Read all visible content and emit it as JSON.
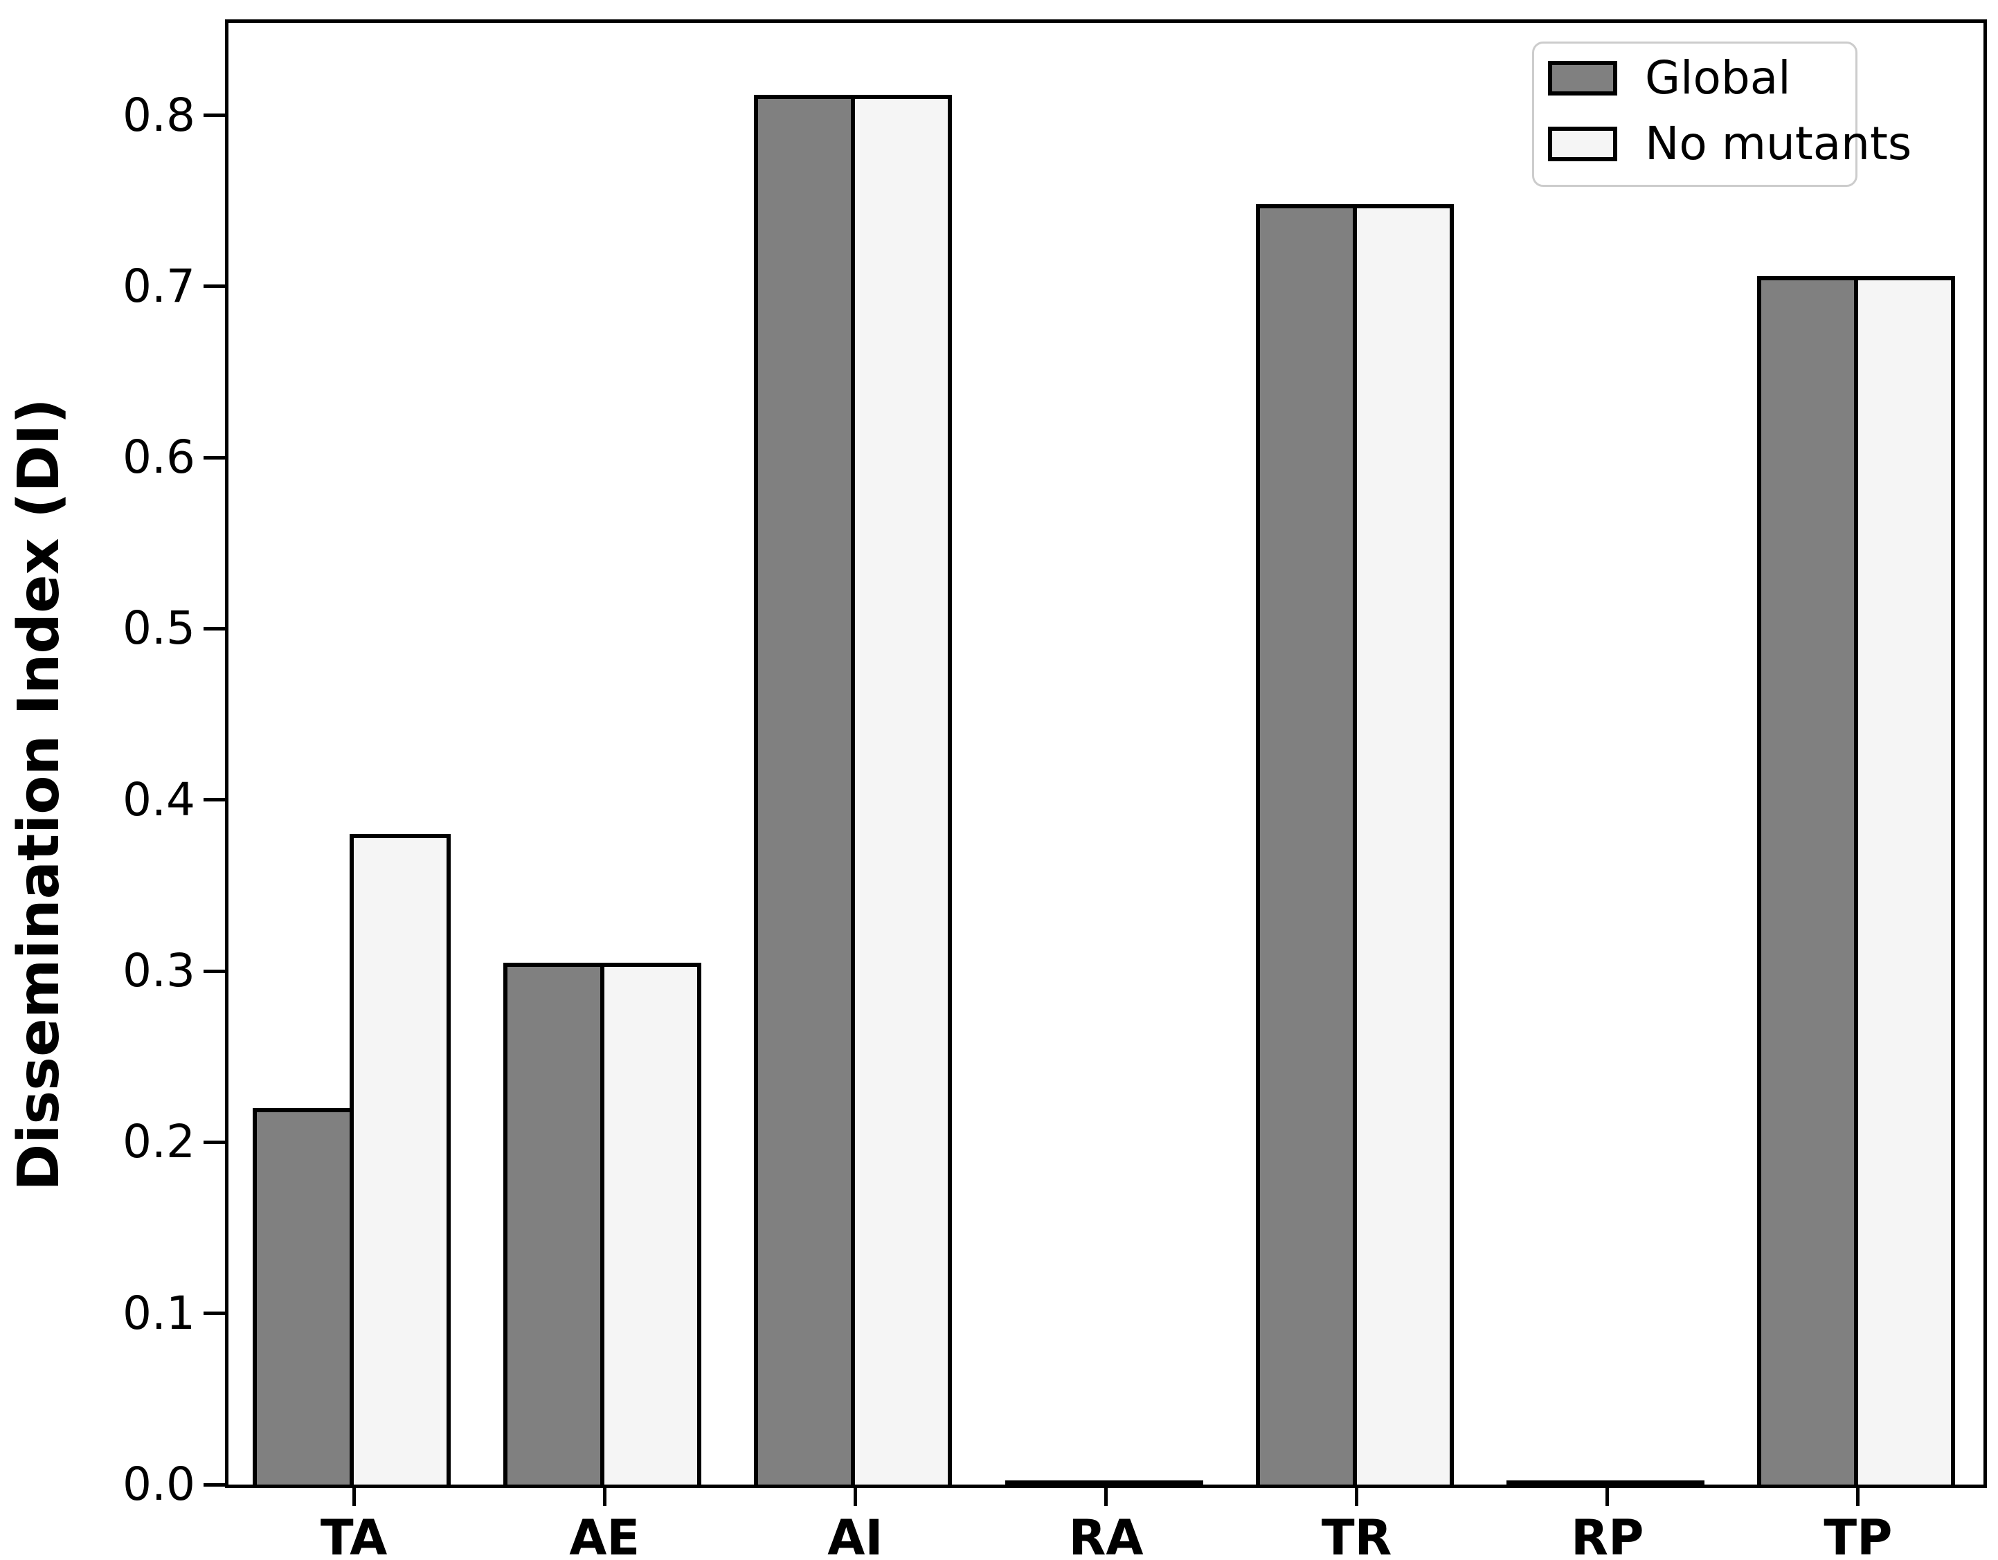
{
  "chart_data": {
    "type": "bar",
    "title": "",
    "xlabel": "",
    "ylabel": "Dissemination Index (DI)",
    "categories": [
      "TA",
      "AE",
      "AI",
      "RA",
      "TR",
      "RP",
      "TP"
    ],
    "series": [
      {
        "name": "Global",
        "color": "#808080",
        "values": [
          0.22,
          0.305,
          0.812,
          0.0,
          0.748,
          0.0,
          0.706
        ]
      },
      {
        "name": "No mutants",
        "color": "#f5f5f5",
        "values": [
          0.38,
          0.305,
          0.812,
          0.0,
          0.748,
          0.0,
          0.706
        ]
      }
    ],
    "ylim": [
      0.0,
      0.854
    ],
    "ytick_labels": [
      "0.0",
      "0.1",
      "0.2",
      "0.3",
      "0.4",
      "0.5",
      "0.6",
      "0.7",
      "0.8"
    ],
    "grid": false,
    "legend_position": "upper right",
    "bar_edgecolor": "#000000",
    "legend_border_color": "#cccccc"
  }
}
